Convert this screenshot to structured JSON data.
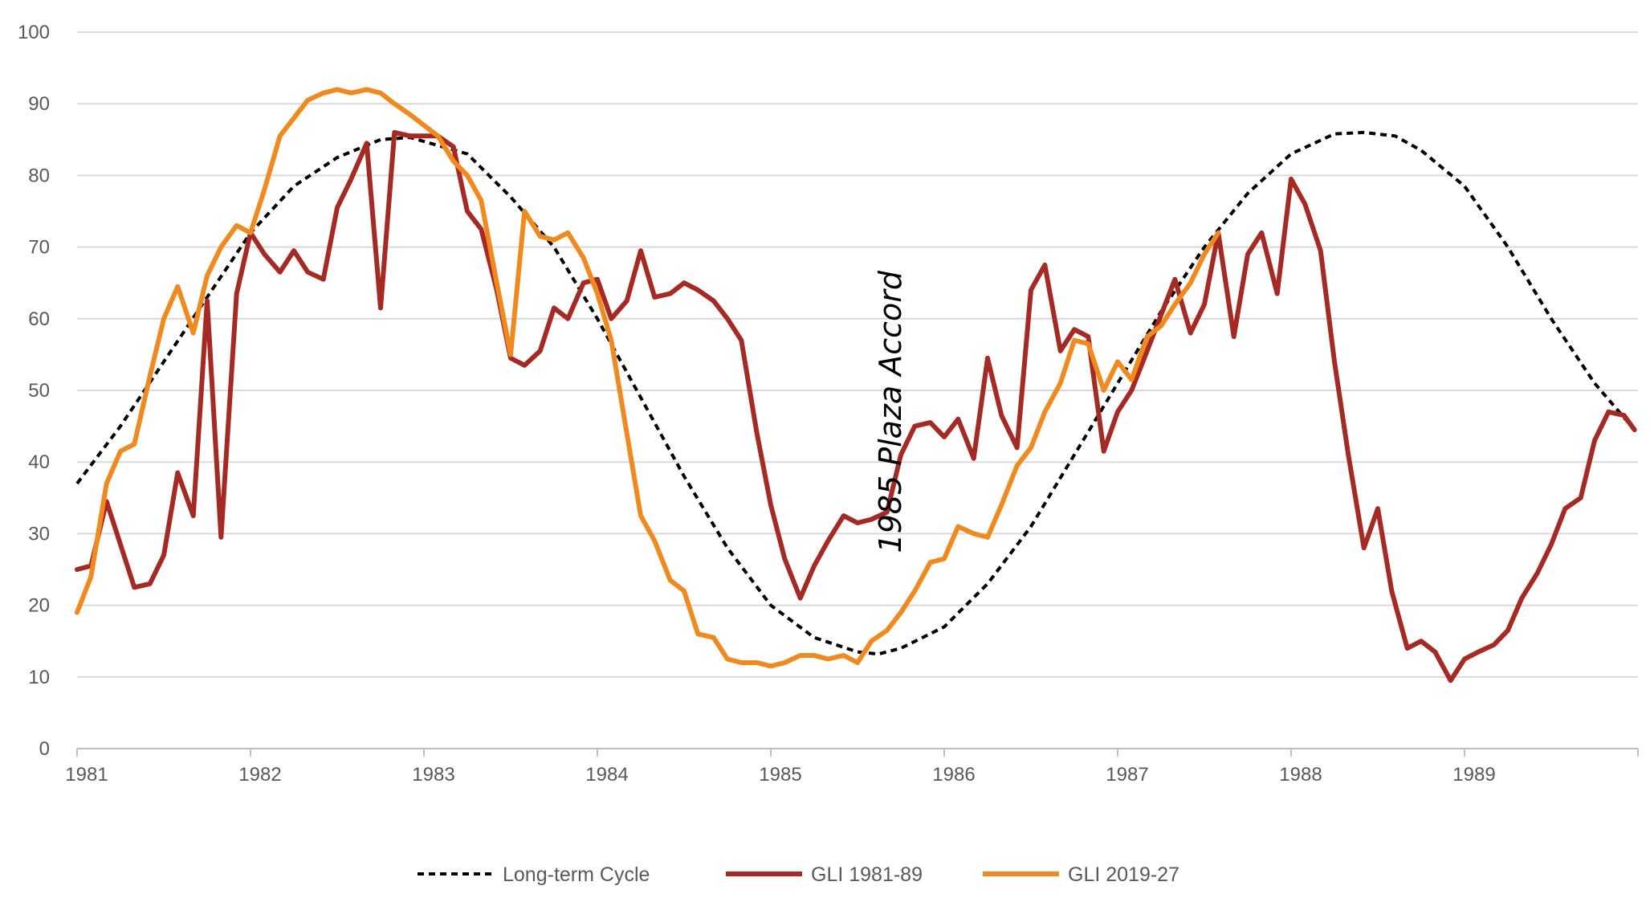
{
  "chart_data": {
    "type": "line",
    "title": "",
    "xlabel": "",
    "ylabel": "",
    "xlim": [
      1981,
      1990
    ],
    "ylim": [
      0,
      100
    ],
    "grid": true,
    "legend_position": "bottom",
    "x_ticks": [
      "1981",
      "1982",
      "1983",
      "1984",
      "1985",
      "1986",
      "1987",
      "1988",
      "1989"
    ],
    "y_ticks": [
      "0",
      "10",
      "20",
      "30",
      "40",
      "50",
      "60",
      "70",
      "80",
      "90",
      "100"
    ],
    "annotations": [
      {
        "text": "1985 Plaza Accord",
        "x": 1985.75,
        "y": 47,
        "rotation": -90
      }
    ],
    "colors": {
      "cycle": "#000000",
      "gli1981": "#A52A24",
      "gli2019": "#F08A1F",
      "grid": "#D9D9D9",
      "axis": "#BFBFBF"
    },
    "series": [
      {
        "name": "Long-term Cycle",
        "style": "dashed",
        "color": "#000000",
        "x": [
          1981.0,
          1981.25,
          1981.5,
          1981.75,
          1982.0,
          1982.25,
          1982.5,
          1982.75,
          1982.92,
          1983.25,
          1983.5,
          1983.75,
          1984.0,
          1984.25,
          1984.5,
          1984.75,
          1985.0,
          1985.25,
          1985.5,
          1985.62,
          1985.75,
          1986.0,
          1986.25,
          1986.5,
          1986.75,
          1987.0,
          1987.25,
          1987.5,
          1987.75,
          1988.0,
          1988.25,
          1988.42,
          1988.6,
          1988.75,
          1989.0,
          1989.25,
          1989.5,
          1989.75,
          1989.98
        ],
        "y": [
          37,
          45,
          54,
          63,
          72,
          78.5,
          82.5,
          85,
          85.3,
          83,
          77,
          70,
          60,
          49,
          38,
          28,
          20,
          15.5,
          13.5,
          13.2,
          14,
          17,
          23,
          31,
          41,
          51,
          61,
          70,
          77.5,
          83,
          85.8,
          86,
          85.5,
          83.5,
          78.5,
          70,
          60,
          51,
          44.5
        ]
      },
      {
        "name": "GLI 1981-89",
        "style": "solid",
        "color": "#A52A24",
        "x": [
          1981.0,
          1981.08,
          1981.17,
          1981.25,
          1981.33,
          1981.42,
          1981.5,
          1981.58,
          1981.67,
          1981.75,
          1981.83,
          1981.92,
          1982.0,
          1982.08,
          1982.17,
          1982.25,
          1982.33,
          1982.42,
          1982.5,
          1982.58,
          1982.67,
          1982.75,
          1982.83,
          1982.92,
          1983.0,
          1983.08,
          1983.17,
          1983.25,
          1983.33,
          1983.42,
          1983.5,
          1983.58,
          1983.67,
          1983.75,
          1983.83,
          1983.92,
          1984.0,
          1984.08,
          1984.17,
          1984.25,
          1984.33,
          1984.42,
          1984.5,
          1984.58,
          1984.67,
          1984.75,
          1984.83,
          1984.92,
          1985.0,
          1985.08,
          1985.17,
          1985.25,
          1985.33,
          1985.42,
          1985.5,
          1985.58,
          1985.67,
          1985.75,
          1985.83,
          1985.92,
          1986.0,
          1986.08,
          1986.17,
          1986.25,
          1986.33,
          1986.42,
          1986.5,
          1986.58,
          1986.67,
          1986.75,
          1986.83,
          1986.92,
          1987.0,
          1987.08,
          1987.17,
          1987.25,
          1987.33,
          1987.42,
          1987.5,
          1987.58,
          1987.67,
          1987.75,
          1987.83,
          1987.92,
          1988.0,
          1988.08,
          1988.17,
          1988.25,
          1988.33,
          1988.42,
          1988.5,
          1988.58,
          1988.67,
          1988.75,
          1988.83,
          1988.92,
          1989.0,
          1989.08,
          1989.17,
          1989.25,
          1989.33,
          1989.42,
          1989.5,
          1989.58,
          1989.67,
          1989.75,
          1989.83,
          1989.92,
          1989.98
        ],
        "y": [
          25,
          25.5,
          34.5,
          28.5,
          22.5,
          23,
          27,
          38.5,
          32.5,
          62.5,
          29.5,
          63.5,
          72,
          69,
          66.5,
          69.5,
          66.5,
          65.5,
          75.5,
          79.5,
          84.5,
          61.5,
          86,
          85.5,
          85.5,
          85.5,
          84,
          75,
          72.5,
          64,
          54.5,
          53.5,
          55.5,
          61.5,
          60,
          65,
          65.5,
          60,
          62.5,
          69.5,
          63,
          63.5,
          65,
          64,
          62.5,
          60,
          57,
          44,
          34,
          26.5,
          21,
          25.5,
          29,
          32.5,
          31.5,
          32,
          33,
          41,
          45,
          45.5,
          43.5,
          46,
          40.5,
          54.5,
          46.5,
          42,
          64,
          67.5,
          55.5,
          58.5,
          57.5,
          41.5,
          47,
          50,
          55.5,
          60.5,
          65.5,
          58,
          62,
          72,
          57.5,
          69,
          72,
          63.5,
          79.5,
          76,
          69.5,
          54,
          41,
          28,
          33.5,
          22,
          14,
          15,
          13.5,
          9.5,
          12.5,
          13.5,
          14.5,
          16.5,
          21,
          24.5,
          28.5,
          33.5,
          35,
          43,
          47,
          46.5,
          44.5
        ]
      },
      {
        "name": "GLI 2019-27",
        "style": "solid",
        "color": "#F08A1F",
        "x": [
          1981.0,
          1981.08,
          1981.17,
          1981.25,
          1981.33,
          1981.42,
          1981.5,
          1981.58,
          1981.67,
          1981.75,
          1981.83,
          1981.92,
          1982.0,
          1982.08,
          1982.17,
          1982.25,
          1982.33,
          1982.42,
          1982.5,
          1982.58,
          1982.67,
          1982.75,
          1982.83,
          1982.92,
          1983.0,
          1983.08,
          1983.17,
          1983.25,
          1983.33,
          1983.42,
          1983.5,
          1983.58,
          1983.67,
          1983.75,
          1983.83,
          1983.92,
          1984.0,
          1984.08,
          1984.17,
          1984.25,
          1984.33,
          1984.42,
          1984.5,
          1984.58,
          1984.67,
          1984.75,
          1984.83,
          1984.92,
          1985.0,
          1985.08,
          1985.17,
          1985.25,
          1985.33,
          1985.42,
          1985.5,
          1985.58,
          1985.67,
          1985.75,
          1985.83,
          1985.92,
          1986.0,
          1986.08,
          1986.17,
          1986.25,
          1986.33,
          1986.42,
          1986.5,
          1986.58,
          1986.67,
          1986.75,
          1986.83,
          1986.92,
          1987.0,
          1987.08,
          1987.17,
          1987.25,
          1987.33,
          1987.42,
          1987.5,
          1987.58
        ],
        "y": [
          19,
          24,
          37,
          41.5,
          42.5,
          52,
          60,
          64.5,
          58,
          66,
          70,
          73,
          72,
          78,
          85.5,
          88,
          90.5,
          91.5,
          92,
          91.5,
          92,
          91.5,
          90,
          88.5,
          87,
          85.5,
          82,
          80,
          76.5,
          65,
          55,
          75,
          71.5,
          71,
          72,
          68.5,
          63.5,
          57,
          44,
          32.5,
          29,
          23.5,
          22,
          16,
          15.5,
          12.5,
          12,
          12,
          11.5,
          12,
          13,
          13,
          12.5,
          13,
          12,
          15,
          16.5,
          19,
          22,
          26,
          26.5,
          31,
          30,
          29.5,
          34,
          39.5,
          42,
          47,
          51,
          57,
          56.5,
          50,
          54,
          51.5,
          57.5,
          59,
          62,
          65,
          69,
          72
        ]
      }
    ]
  }
}
